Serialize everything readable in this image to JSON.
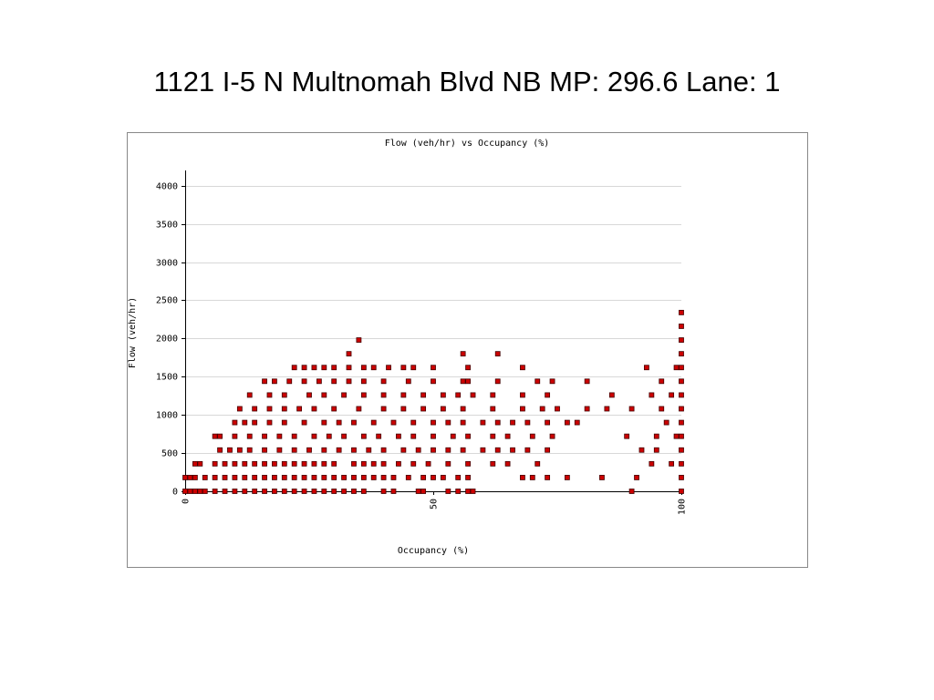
{
  "slide_title": "1121  I-5 N  Multnomah Blvd NB MP: 296.6  Lane: 1",
  "chart_data": {
    "type": "scatter",
    "title": "Flow (veh/hr) vs Occupancy (%)",
    "x_label": "Occupancy (%)",
    "y_label": "Flow (veh/hr)",
    "xlim": [
      0,
      100
    ],
    "ylim": [
      0,
      4200
    ],
    "xticks": [
      0,
      50,
      100
    ],
    "yticks": [
      0,
      500,
      1000,
      1500,
      2000,
      2500,
      3000,
      3500,
      4000
    ],
    "grid": true,
    "color": "#cc0000",
    "x": [
      0,
      1,
      2,
      3,
      4,
      6,
      8,
      10,
      12,
      14,
      16,
      18,
      20,
      22,
      24,
      26,
      28,
      30,
      32,
      34,
      36,
      40,
      42,
      47,
      48,
      53,
      55,
      57,
      58,
      90,
      100,
      0,
      1,
      2,
      4,
      6,
      8,
      10,
      12,
      14,
      16,
      18,
      20,
      22,
      24,
      26,
      28,
      30,
      32,
      34,
      36,
      38,
      40,
      42,
      45,
      48,
      50,
      52,
      55,
      57,
      68,
      70,
      73,
      77,
      84,
      91,
      100,
      2,
      3,
      6,
      8,
      10,
      12,
      14,
      16,
      18,
      20,
      22,
      24,
      26,
      28,
      30,
      34,
      36,
      38,
      40,
      43,
      46,
      49,
      53,
      57,
      62,
      65,
      71,
      94,
      98,
      100,
      7,
      9,
      11,
      13,
      16,
      19,
      22,
      25,
      28,
      31,
      34,
      37,
      40,
      44,
      47,
      50,
      53,
      56,
      60,
      63,
      66,
      69,
      73,
      92,
      95,
      100,
      6,
      7,
      10,
      13,
      16,
      19,
      22,
      26,
      29,
      32,
      36,
      39,
      43,
      46,
      50,
      54,
      57,
      62,
      65,
      70,
      74,
      89,
      95,
      99,
      100,
      10,
      12,
      14,
      17,
      20,
      24,
      28,
      31,
      34,
      38,
      42,
      46,
      50,
      53,
      56,
      60,
      63,
      66,
      69,
      73,
      77,
      79,
      97,
      100,
      11,
      14,
      17,
      20,
      23,
      26,
      30,
      35,
      40,
      44,
      48,
      52,
      56,
      62,
      68,
      72,
      75,
      81,
      85,
      90,
      96,
      100,
      13,
      17,
      20,
      25,
      28,
      32,
      36,
      40,
      44,
      48,
      52,
      55,
      58,
      62,
      68,
      73,
      86,
      94,
      98,
      100,
      16,
      18,
      21,
      24,
      27,
      30,
      33,
      36,
      40,
      45,
      50,
      56,
      57,
      63,
      71,
      74,
      81,
      96,
      100,
      22,
      24,
      26,
      28,
      30,
      33,
      36,
      38,
      41,
      44,
      46,
      50,
      57,
      68,
      93,
      99,
      100,
      33,
      56,
      63,
      100,
      35,
      100,
      100,
      100
    ],
    "values": [
      0,
      0,
      0,
      0,
      0,
      0,
      0,
      0,
      0,
      0,
      0,
      0,
      0,
      0,
      0,
      0,
      0,
      0,
      0,
      0,
      0,
      0,
      0,
      0,
      0,
      0,
      0,
      0,
      0,
      0,
      0,
      180,
      180,
      180,
      180,
      180,
      180,
      180,
      180,
      180,
      180,
      180,
      180,
      180,
      180,
      180,
      180,
      180,
      180,
      180,
      180,
      180,
      180,
      180,
      180,
      180,
      180,
      180,
      180,
      180,
      180,
      180,
      180,
      180,
      180,
      180,
      180,
      360,
      360,
      360,
      360,
      360,
      360,
      360,
      360,
      360,
      360,
      360,
      360,
      360,
      360,
      360,
      360,
      360,
      360,
      360,
      360,
      360,
      360,
      360,
      360,
      360,
      360,
      360,
      360,
      360,
      360,
      540,
      540,
      540,
      540,
      540,
      540,
      540,
      540,
      540,
      540,
      540,
      540,
      540,
      540,
      540,
      540,
      540,
      540,
      540,
      540,
      540,
      540,
      540,
      540,
      540,
      540,
      720,
      720,
      720,
      720,
      720,
      720,
      720,
      720,
      720,
      720,
      720,
      720,
      720,
      720,
      720,
      720,
      720,
      720,
      720,
      720,
      720,
      720,
      720,
      720,
      720,
      900,
      900,
      900,
      900,
      900,
      900,
      900,
      900,
      900,
      900,
      900,
      900,
      900,
      900,
      900,
      900,
      900,
      900,
      900,
      900,
      900,
      900,
      900,
      900,
      1080,
      1080,
      1080,
      1080,
      1080,
      1080,
      1080,
      1080,
      1080,
      1080,
      1080,
      1080,
      1080,
      1080,
      1080,
      1080,
      1080,
      1080,
      1080,
      1080,
      1080,
      1080,
      1260,
      1260,
      1260,
      1260,
      1260,
      1260,
      1260,
      1260,
      1260,
      1260,
      1260,
      1260,
      1260,
      1260,
      1260,
      1260,
      1260,
      1260,
      1260,
      1260,
      1440,
      1440,
      1440,
      1440,
      1440,
      1440,
      1440,
      1440,
      1440,
      1440,
      1440,
      1440,
      1440,
      1440,
      1440,
      1440,
      1440,
      1440,
      1440,
      1620,
      1620,
      1620,
      1620,
      1620,
      1620,
      1620,
      1620,
      1620,
      1620,
      1620,
      1620,
      1620,
      1620,
      1620,
      1620,
      1620,
      1800,
      1800,
      1800,
      1800,
      1980,
      1980,
      2160,
      2340
    ]
  }
}
